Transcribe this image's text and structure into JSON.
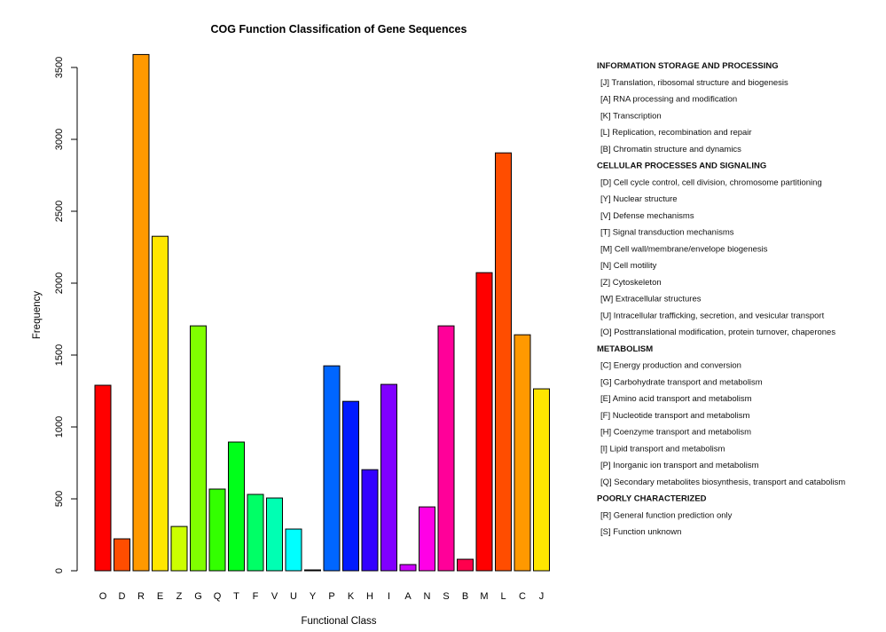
{
  "chart_data": {
    "type": "bar",
    "title": "COG Function Classification of Gene Sequences",
    "xlabel": "Functional Class",
    "ylabel": "Frequency",
    "ylim": [
      0,
      3600
    ],
    "yticks": [
      0,
      500,
      1000,
      1500,
      2000,
      2500,
      3000,
      3500
    ],
    "grid": false,
    "legend_placement": "right",
    "categories": [
      "O",
      "D",
      "R",
      "E",
      "Z",
      "G",
      "Q",
      "T",
      "F",
      "V",
      "U",
      "Y",
      "P",
      "K",
      "H",
      "I",
      "A",
      "N",
      "S",
      "B",
      "M",
      "L",
      "C",
      "J"
    ],
    "values": [
      1290,
      222,
      3590,
      2326,
      308,
      1703,
      568,
      895,
      531,
      506,
      290,
      6,
      1425,
      1178,
      703,
      1296,
      43,
      444,
      1703,
      80,
      2073,
      2906,
      1641,
      1265
    ],
    "colors": [
      "#ff0000",
      "#ff4d00",
      "#ff9900",
      "#ffe600",
      "#ccff00",
      "#80ff00",
      "#33ff00",
      "#00ff1a",
      "#00ff66",
      "#00ffb3",
      "#00ffff",
      "#000000",
      "#0066ff",
      "#001aff",
      "#3300ff",
      "#8000ff",
      "#cc00ff",
      "#ff00e6",
      "#ff0099",
      "#ff004d",
      "#ff0000",
      "#ff4d00",
      "#ff9900",
      "#ffe600"
    ],
    "legend": [
      {
        "text": "INFORMATION STORAGE AND PROCESSING",
        "header": true
      },
      {
        "text": "[J] Translation, ribosomal structure and biogenesis"
      },
      {
        "text": "[A] RNA processing and modification"
      },
      {
        "text": "[K] Transcription"
      },
      {
        "text": "[L] Replication, recombination and repair"
      },
      {
        "text": "[B] Chromatin structure and dynamics"
      },
      {
        "text": "CELLULAR PROCESSES AND SIGNALING",
        "header": true
      },
      {
        "text": "[D] Cell cycle control, cell division, chromosome partitioning"
      },
      {
        "text": "[Y] Nuclear structure"
      },
      {
        "text": "[V] Defense mechanisms"
      },
      {
        "text": "[T] Signal transduction mechanisms"
      },
      {
        "text": "[M] Cell wall/membrane/envelope biogenesis"
      },
      {
        "text": "[N] Cell motility"
      },
      {
        "text": "[Z] Cytoskeleton"
      },
      {
        "text": "[W] Extracellular structures"
      },
      {
        "text": "[U] Intracellular trafficking, secretion, and vesicular transport"
      },
      {
        "text": "[O] Posttranslational modification, protein turnover, chaperones"
      },
      {
        "text": "METABOLISM",
        "header": true
      },
      {
        "text": "[C] Energy production and conversion"
      },
      {
        "text": "[G] Carbohydrate transport and metabolism"
      },
      {
        "text": "[E] Amino acid transport and metabolism"
      },
      {
        "text": "[F] Nucleotide transport and metabolism"
      },
      {
        "text": "[H] Coenzyme transport and metabolism"
      },
      {
        "text": "[I] Lipid transport and metabolism"
      },
      {
        "text": "[P] Inorganic ion transport and metabolism"
      },
      {
        "text": "[Q] Secondary metabolites biosynthesis, transport and catabolism"
      },
      {
        "text": "POORLY CHARACTERIZED",
        "header": true
      },
      {
        "text": "[R] General function prediction only"
      },
      {
        "text": "[S] Function unknown"
      }
    ]
  }
}
